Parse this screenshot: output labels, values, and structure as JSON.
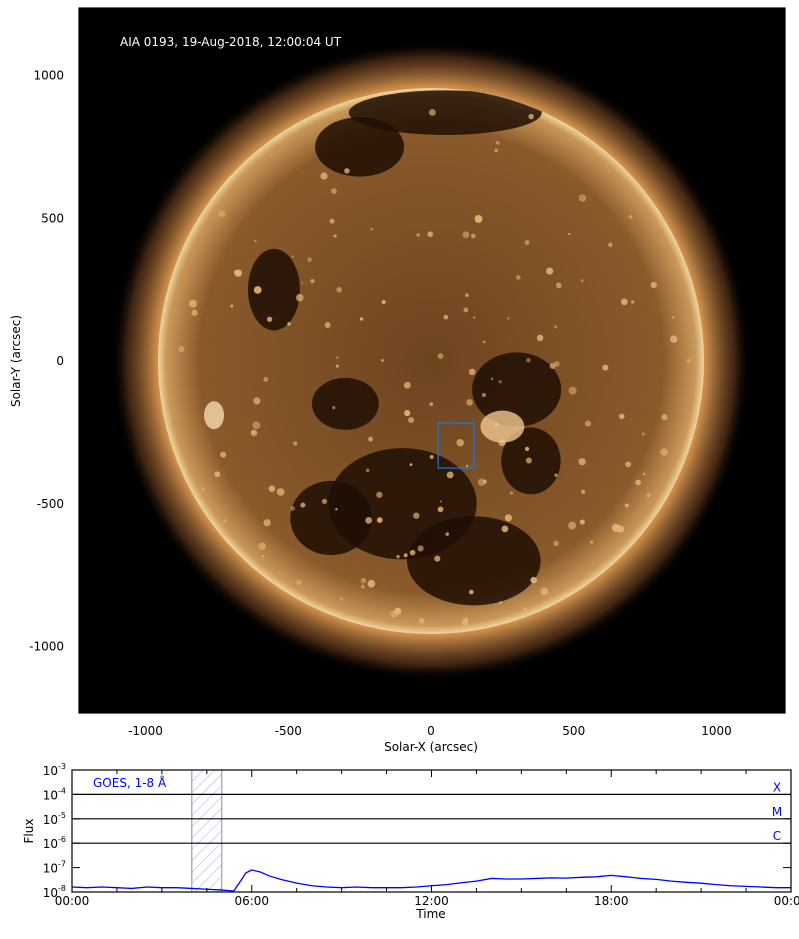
{
  "chart_data": [
    {
      "type": "image",
      "title": "AIA 0193, 19-Aug-2018, 12:00:04 UT",
      "xlabel": "Solar-X (arcsec)",
      "ylabel": "Solar-Y (arcsec)",
      "xlim": [
        -1235,
        1235
      ],
      "ylim": [
        -1235,
        1235
      ],
      "xticks": [
        -1000,
        -500,
        0,
        500,
        1000
      ],
      "yticks": [
        -1000,
        -500,
        0,
        500,
        1000
      ],
      "xtick_labels": [
        "-1000",
        "-500",
        "0",
        "500",
        "1000"
      ],
      "ytick_labels": [
        "-1000",
        "-500",
        "0",
        "500",
        "1000"
      ],
      "solar_radius_arcsec": 963,
      "region_box": {
        "x": [
          25,
          151
        ],
        "y": [
          -375,
          -217
        ],
        "color": "#1f77d4"
      },
      "colors": {
        "background": "#000000",
        "disk": "#8a5a2a",
        "limb": "#e8c48c"
      }
    },
    {
      "type": "line",
      "legend": "GOES, 1-8 Å",
      "xlabel": "Time",
      "ylabel": "Flux",
      "xlim": [
        0,
        24
      ],
      "ylim": [
        1e-08,
        0.001
      ],
      "yscale": "log",
      "xtick_labels": [
        "00:00",
        "06:00",
        "12:00",
        "18:00",
        "00:00"
      ],
      "xtick_hours": [
        0,
        6,
        12,
        18,
        24
      ],
      "ytick_exponents": [
        "-3",
        "-4",
        "-5",
        "-6",
        "-7",
        "-8"
      ],
      "class_lines": [
        {
          "label": "X",
          "flux": 0.0001
        },
        {
          "label": "M",
          "flux": 1e-05
        },
        {
          "label": "C",
          "flux": 1e-06
        }
      ],
      "shaded_interval_hours": [
        4.0,
        5.0
      ],
      "series_color": "#0000ff",
      "series": [
        {
          "name": "GOES, 1-8 Å",
          "x": [
            0,
            0.5,
            1,
            1.5,
            2,
            2.5,
            3,
            3.5,
            4,
            4.5,
            5,
            5.4,
            5.6,
            5.8,
            6.0,
            6.3,
            6.6,
            7.0,
            7.5,
            8.0,
            8.5,
            9.0,
            9.5,
            10,
            10.5,
            11,
            11.5,
            12,
            12.5,
            13,
            13.5,
            14,
            14.5,
            15,
            15.5,
            16,
            16.5,
            17,
            17.5,
            18,
            18.5,
            19,
            19.5,
            20,
            20.5,
            21,
            21.5,
            22,
            22.5,
            23,
            23.5,
            24
          ],
          "y": [
            1.6e-08,
            1.5e-08,
            1.6e-08,
            1.5e-08,
            1.4e-08,
            1.6e-08,
            1.5e-08,
            1.5e-08,
            1.4e-08,
            1.3e-08,
            1.2e-08,
            1.1e-08,
            2.5e-08,
            6e-08,
            8e-08,
            6.5e-08,
            4.5e-08,
            3.2e-08,
            2.3e-08,
            1.8e-08,
            1.6e-08,
            1.5e-08,
            1.6e-08,
            1.5e-08,
            1.5e-08,
            1.5e-08,
            1.6e-08,
            1.8e-08,
            2e-08,
            2.4e-08,
            2.8e-08,
            3.6e-08,
            3.4e-08,
            3.4e-08,
            3.6e-08,
            3.8e-08,
            3.7e-08,
            4e-08,
            4.2e-08,
            4.8e-08,
            4.2e-08,
            3.6e-08,
            3.3e-08,
            2.8e-08,
            2.5e-08,
            2.3e-08,
            2e-08,
            1.8e-08,
            1.7e-08,
            1.6e-08,
            1.5e-08,
            1.5e-08
          ]
        }
      ]
    }
  ]
}
